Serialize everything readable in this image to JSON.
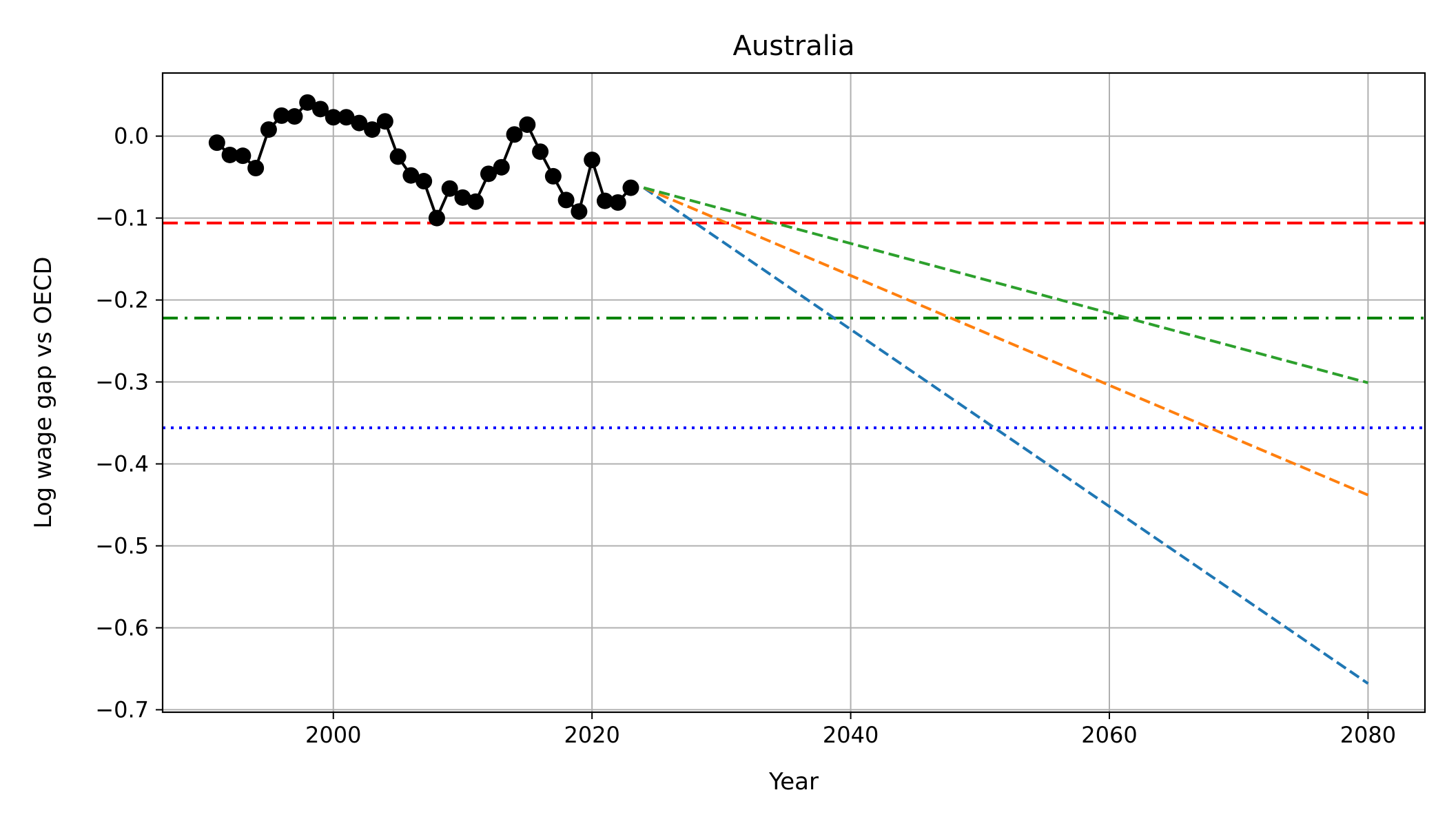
{
  "chart_data": {
    "type": "line",
    "title": "Australia",
    "xlabel": "Year",
    "ylabel": "Log wage gap vs OECD",
    "xlim": [
      1986.8,
      2084.4
    ],
    "ylim": [
      -0.703,
      0.077
    ],
    "xticks": [
      2000,
      2020,
      2040,
      2060,
      2080
    ],
    "yticks": [
      0.0,
      -0.1,
      -0.2,
      -0.3,
      -0.4,
      -0.5,
      -0.6,
      -0.7
    ],
    "xtick_labels": [
      "2000",
      "2020",
      "2040",
      "2060",
      "2080"
    ],
    "ytick_labels": [
      "0.0",
      "−0.1",
      "−0.2",
      "−0.3",
      "−0.4",
      "−0.5",
      "−0.6",
      "−0.7"
    ],
    "grid": true,
    "historical": {
      "color": "#000000",
      "x": [
        1991,
        1992,
        1993,
        1994,
        1995,
        1996,
        1997,
        1998,
        1999,
        2000,
        2001,
        2002,
        2003,
        2004,
        2005,
        2006,
        2007,
        2008,
        2009,
        2010,
        2011,
        2012,
        2013,
        2014,
        2015,
        2016,
        2017,
        2018,
        2019,
        2020,
        2021,
        2022,
        2023
      ],
      "y": [
        -0.008,
        -0.023,
        -0.024,
        -0.039,
        0.008,
        0.025,
        0.024,
        0.041,
        0.033,
        0.023,
        0.023,
        0.016,
        0.008,
        0.018,
        -0.025,
        -0.048,
        -0.055,
        -0.1,
        -0.064,
        -0.075,
        -0.08,
        -0.046,
        -0.038,
        0.002,
        0.014,
        -0.019,
        -0.049,
        -0.078,
        -0.092,
        -0.029,
        -0.079,
        -0.081,
        -0.063
      ]
    },
    "projections": [
      {
        "color": "#1f77b4",
        "x": [
          2024,
          2080
        ],
        "y": [
          -0.063,
          -0.668
        ]
      },
      {
        "color": "#ff7f0e",
        "x": [
          2024,
          2080
        ],
        "y": [
          -0.063,
          -0.438
        ]
      },
      {
        "color": "#2ca02c",
        "x": [
          2024,
          2080
        ],
        "y": [
          -0.063,
          -0.301
        ]
      }
    ],
    "reference_lines": [
      {
        "y": -0.106,
        "color": "#ff0000",
        "style": "dashed"
      },
      {
        "y": -0.222,
        "color": "#008000",
        "style": "dashdot"
      },
      {
        "y": -0.356,
        "color": "#0000ff",
        "style": "dotted"
      }
    ]
  }
}
